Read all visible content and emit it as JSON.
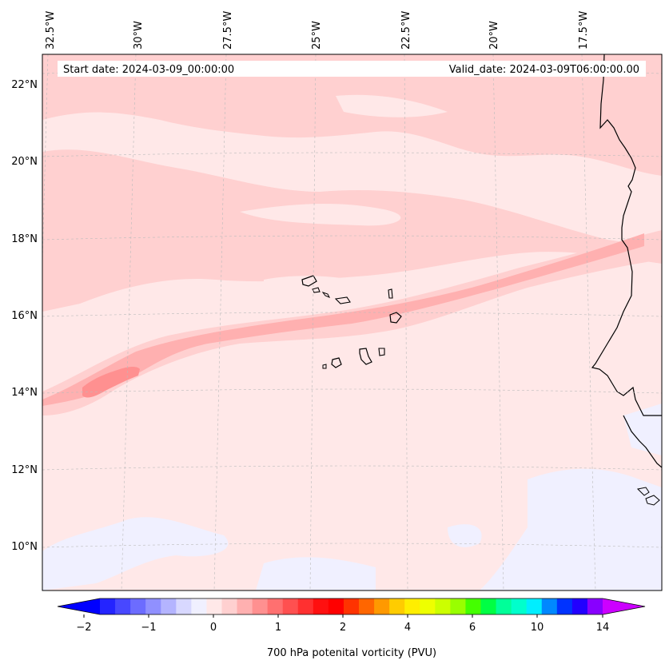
{
  "header": {
    "start_text": "Start date: 2024-03-09_00:00:00",
    "valid_text": "Valid_date: 2024-03-09T06:00:00.00"
  },
  "lon_labels": [
    "32.5°W",
    "30°W",
    "27.5°W",
    "25°W",
    "22.5°W",
    "20°W",
    "17.5°W"
  ],
  "lat_labels": [
    "22°N",
    "20°N",
    "18°N",
    "16°N",
    "14°N",
    "12°N",
    "10°N"
  ],
  "colorbar": {
    "label": "700 hPa potenital vorticity (PVU)",
    "tick_labels": [
      "−2",
      "−1",
      "0",
      "1",
      "2",
      "4",
      "6",
      "10",
      "14"
    ],
    "colors": [
      "#0000ff",
      "#2424ff",
      "#4848ff",
      "#6c6cff",
      "#9090ff",
      "#b4b4ff",
      "#d8d8ff",
      "#f0f0ff",
      "#ffe8e8",
      "#ffd0d0",
      "#ffb0b0",
      "#ff9090",
      "#ff7070",
      "#ff5050",
      "#ff3030",
      "#ff1010",
      "#ff0000",
      "#ff3300",
      "#ff6600",
      "#ff9900",
      "#ffcc00",
      "#ffee00",
      "#eeff00",
      "#ccff00",
      "#99ff00",
      "#44ff00",
      "#00ff44",
      "#00ff99",
      "#00ffcc",
      "#00eeff",
      "#0088ff",
      "#0033ff",
      "#2200ff",
      "#8800ff",
      "#cc00ff"
    ]
  },
  "colors": {
    "background_field": "#ffe8e8",
    "light_blue_field": "#f0f0ff",
    "pink_field": "#ffd0d0",
    "band_field": "#ffb0b0",
    "core_field": "#ff9090",
    "coastline": "#000000"
  }
}
